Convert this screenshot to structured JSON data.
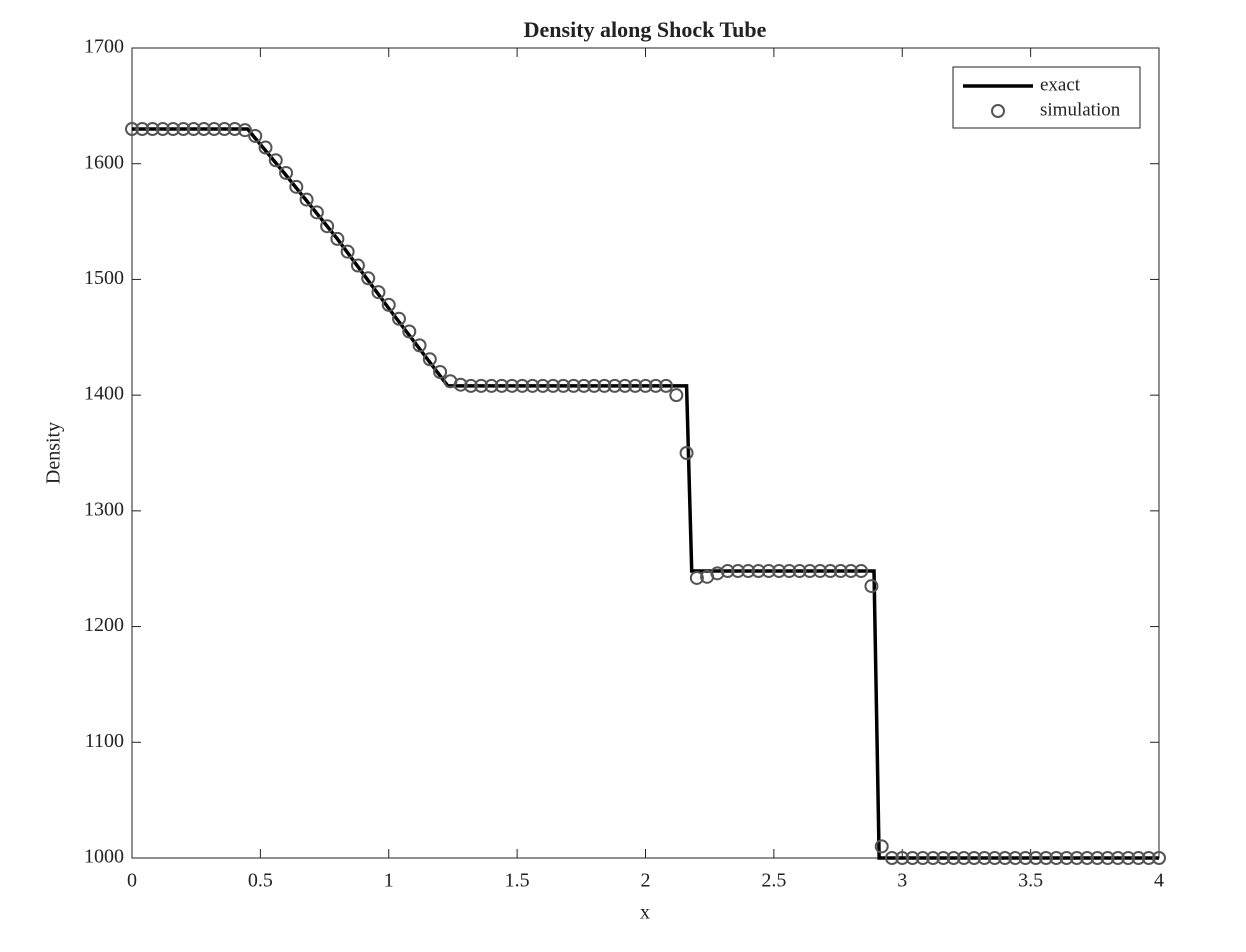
{
  "chart_data": {
    "type": "line",
    "title": "Density along Shock Tube",
    "xlabel": "x",
    "ylabel": "Density",
    "xlim": [
      0,
      4
    ],
    "ylim": [
      1000,
      1700
    ],
    "xticks": [
      0,
      0.5,
      1,
      1.5,
      2,
      2.5,
      3,
      3.5,
      4
    ],
    "yticks": [
      1000,
      1100,
      1200,
      1300,
      1400,
      1500,
      1600,
      1700
    ],
    "grid": false,
    "legend": "top-right",
    "series": [
      {
        "name": "exact",
        "color": "#000000",
        "style": "line",
        "x": [
          0,
          0.45,
          0.6,
          0.8,
          1.0,
          1.23,
          2.16,
          2.18,
          2.89,
          2.91,
          4
        ],
        "values": [
          1630,
          1630,
          1590,
          1535,
          1475,
          1408,
          1408,
          1248,
          1248,
          1000,
          1000
        ]
      },
      {
        "name": "simulation",
        "color": "#555555",
        "style": "marker",
        "x": [
          0,
          0.04,
          0.08,
          0.12,
          0.16,
          0.2,
          0.24,
          0.28,
          0.32,
          0.36,
          0.4,
          0.44,
          0.48,
          0.52,
          0.56,
          0.6,
          0.64,
          0.68,
          0.72,
          0.76,
          0.8,
          0.84,
          0.88,
          0.92,
          0.96,
          1.0,
          1.04,
          1.08,
          1.12,
          1.16,
          1.2,
          1.24,
          1.28,
          1.32,
          1.36,
          1.4,
          1.44,
          1.48,
          1.52,
          1.56,
          1.6,
          1.64,
          1.68,
          1.72,
          1.76,
          1.8,
          1.84,
          1.88,
          1.92,
          1.96,
          2.0,
          2.04,
          2.08,
          2.12,
          2.16,
          2.2,
          2.24,
          2.28,
          2.32,
          2.36,
          2.4,
          2.44,
          2.48,
          2.52,
          2.56,
          2.6,
          2.64,
          2.68,
          2.72,
          2.76,
          2.8,
          2.84,
          2.88,
          2.92,
          2.96,
          3.0,
          3.04,
          3.08,
          3.12,
          3.16,
          3.2,
          3.24,
          3.28,
          3.32,
          3.36,
          3.4,
          3.44,
          3.48,
          3.52,
          3.56,
          3.6,
          3.64,
          3.68,
          3.72,
          3.76,
          3.8,
          3.84,
          3.88,
          3.92,
          3.96,
          4.0
        ],
        "values": [
          1630,
          1630,
          1630,
          1630,
          1630,
          1630,
          1630,
          1630,
          1630,
          1630,
          1630,
          1629,
          1624,
          1614,
          1603,
          1592,
          1580,
          1569,
          1558,
          1546,
          1535,
          1524,
          1512,
          1501,
          1489,
          1478,
          1466,
          1455,
          1443,
          1431,
          1420,
          1412,
          1409,
          1408,
          1408,
          1408,
          1408,
          1408,
          1408,
          1408,
          1408,
          1408,
          1408,
          1408,
          1408,
          1408,
          1408,
          1408,
          1408,
          1408,
          1408,
          1408,
          1408,
          1400,
          1350,
          1242,
          1243,
          1246,
          1248,
          1248,
          1248,
          1248,
          1248,
          1248,
          1248,
          1248,
          1248,
          1248,
          1248,
          1248,
          1248,
          1248,
          1235,
          1010,
          1000,
          1000,
          1000,
          1000,
          1000,
          1000,
          1000,
          1000,
          1000,
          1000,
          1000,
          1000,
          1000,
          1000,
          1000,
          1000,
          1000,
          1000,
          1000,
          1000,
          1000,
          1000,
          1000,
          1000,
          1000,
          1000,
          1000
        ]
      }
    ]
  }
}
